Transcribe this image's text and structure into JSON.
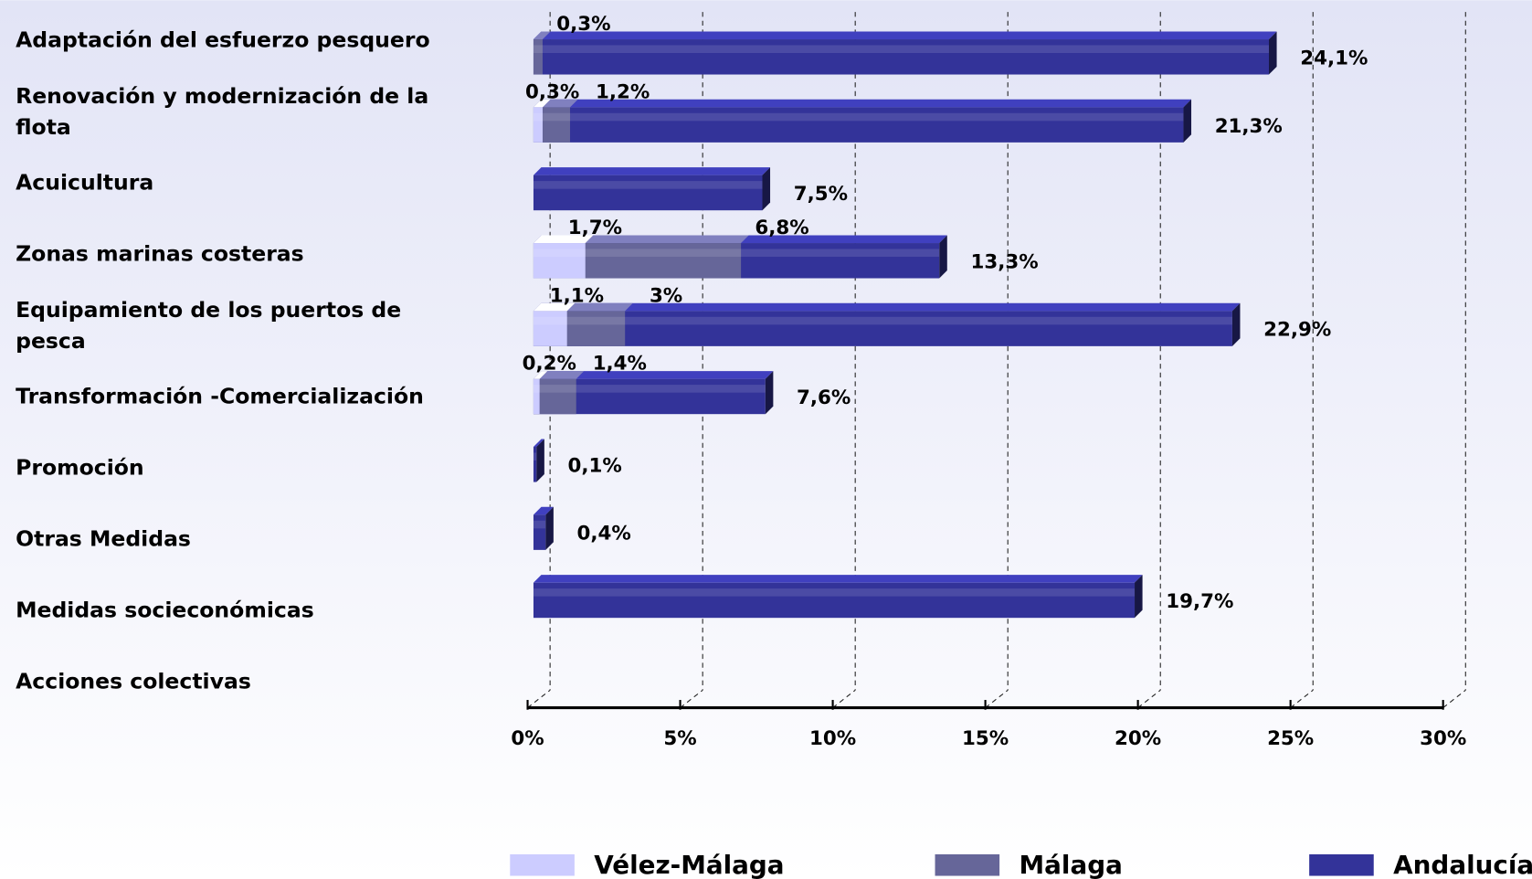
{
  "chart_data": {
    "type": "bar",
    "orientation": "horizontal",
    "categories": [
      "Adaptación del esfuerzo pesquero",
      "Renovación y modernización de la flota",
      "Acuicultura",
      "Zonas marinas costeras",
      "Equipamiento de los puertos de pesca",
      "Transformación -Comercialización",
      "Promoción",
      "Otras Medidas",
      "Medidas socieconómicas",
      "Acciones colectivas"
    ],
    "series": [
      {
        "name": "Vélez-Málaga",
        "color": "#ccccff",
        "values": [
          null,
          0.3,
          null,
          1.7,
          1.1,
          0.2,
          null,
          null,
          null,
          null
        ],
        "value_labels": [
          null,
          "0,3%",
          null,
          "1,7%",
          "1,1%",
          "0,2%",
          null,
          null,
          null,
          null
        ]
      },
      {
        "name": "Málaga",
        "color": "#666699",
        "values": [
          0.3,
          1.2,
          null,
          6.8,
          3,
          1.4,
          null,
          null,
          null,
          null
        ],
        "value_labels": [
          "0,3%",
          "1,2%",
          null,
          "6,8%",
          "3%",
          "1,4%",
          null,
          null,
          null,
          null
        ]
      },
      {
        "name": "Andalucía",
        "color": "#333399",
        "values": [
          24.1,
          21.3,
          7.5,
          13.3,
          22.9,
          7.6,
          0.1,
          0.4,
          19.7,
          null
        ],
        "value_labels": [
          "24,1%",
          "21,3%",
          "7,5%",
          "13,3%",
          "22,9%",
          "7,6%",
          "0,1%",
          "0,4%",
          "19,7%",
          null
        ]
      }
    ],
    "xlim": [
      0,
      30
    ],
    "xticks": [
      {
        "value": 0,
        "label": "0%"
      },
      {
        "value": 5,
        "label": "5%"
      },
      {
        "value": 10,
        "label": "10%"
      },
      {
        "value": 15,
        "label": "15%"
      },
      {
        "value": 20,
        "label": "20%"
      },
      {
        "value": 25,
        "label": "25%"
      },
      {
        "value": 30,
        "label": "30%"
      }
    ],
    "grid": true,
    "legend": "bottom"
  }
}
